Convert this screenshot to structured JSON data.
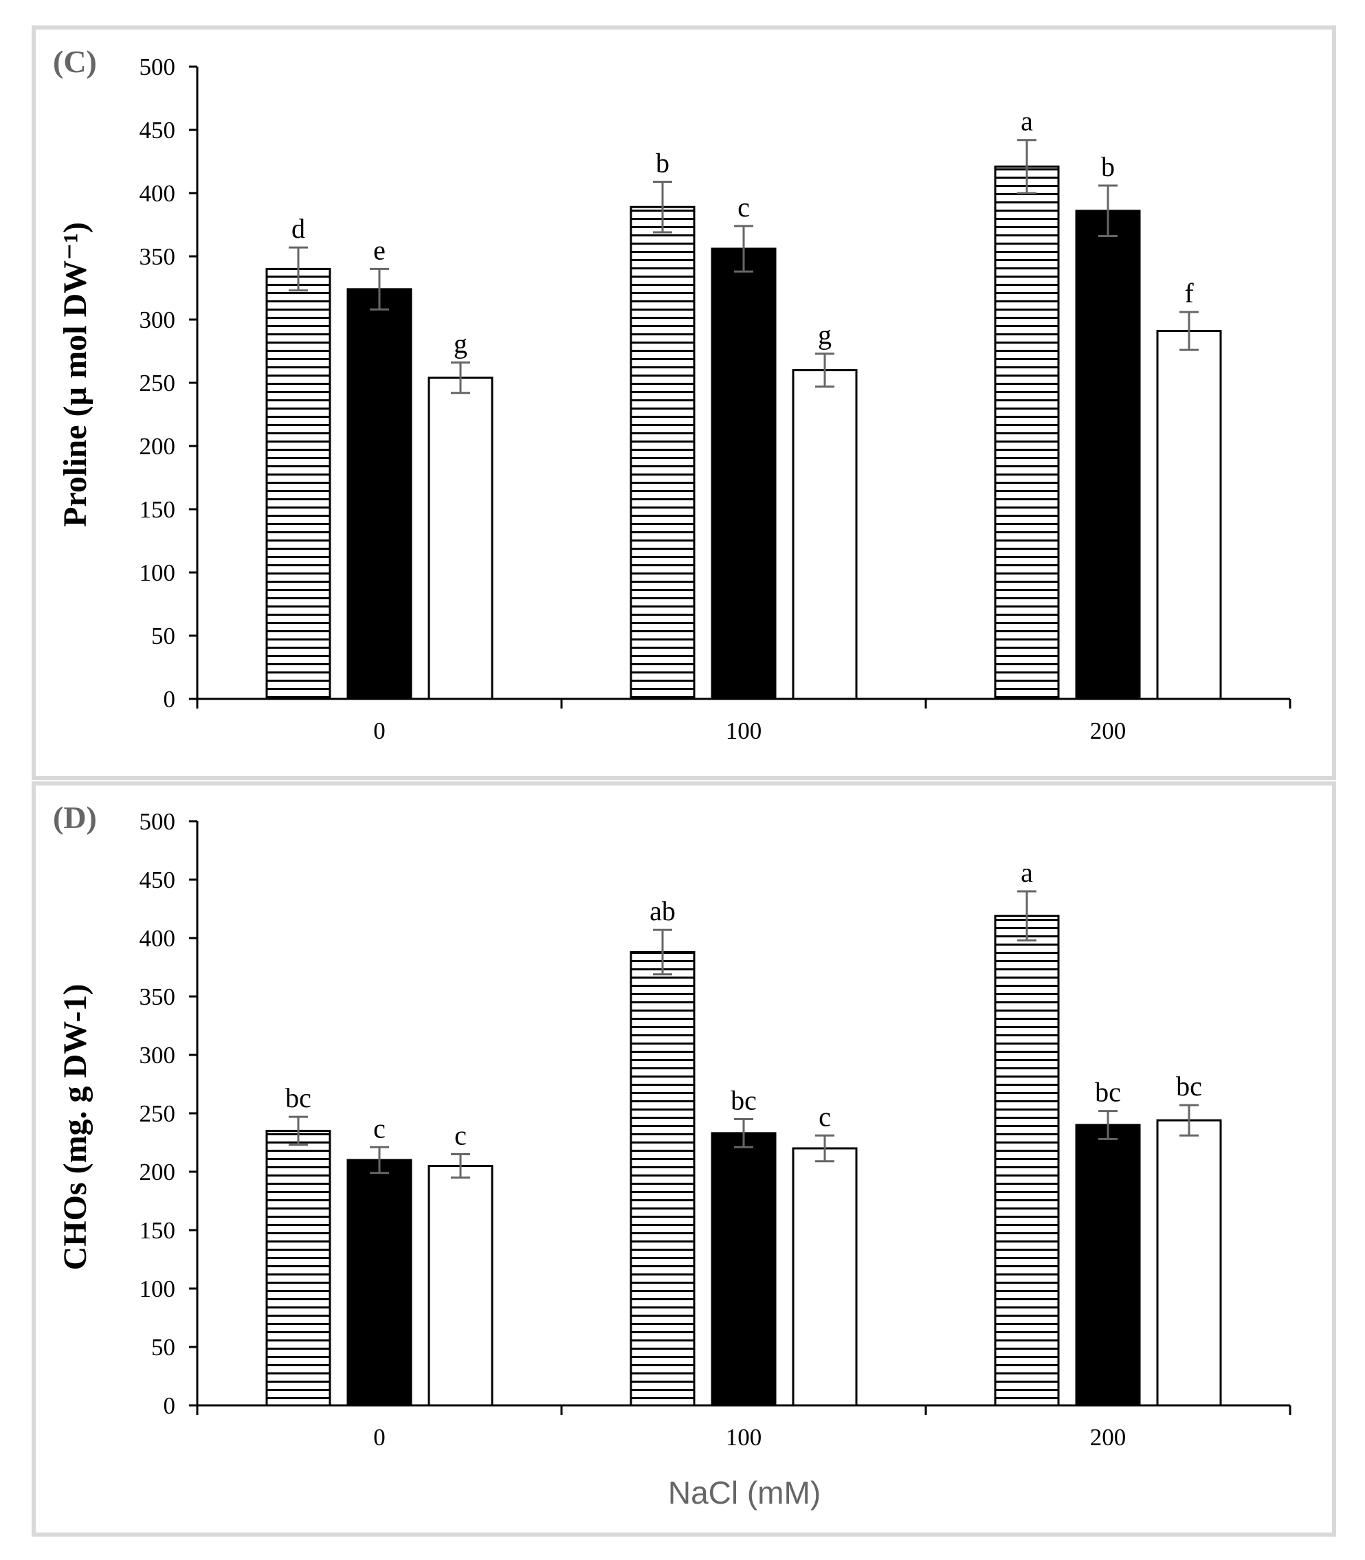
{
  "chart_data": [
    {
      "type": "bar",
      "panel": "(C)",
      "title": "",
      "xlabel": "",
      "ylabel": "Proline (µ mol DW⁻¹)",
      "categories": [
        "0",
        "100",
        "200"
      ],
      "ylim": [
        0,
        500
      ],
      "yticks": [
        0,
        50,
        100,
        150,
        200,
        250,
        300,
        350,
        400,
        450,
        500
      ],
      "grid": false,
      "series": [
        {
          "name": "series 1 (horizontal stripes)",
          "pattern": "stripes",
          "values": [
            340,
            389,
            421
          ],
          "errors": [
            17,
            20,
            21
          ],
          "labels": [
            "d",
            "b",
            "a"
          ]
        },
        {
          "name": "series 2 (solid black)",
          "pattern": "black",
          "values": [
            324,
            356,
            386
          ],
          "errors": [
            16,
            18,
            20
          ],
          "labels": [
            "e",
            "c",
            "b"
          ]
        },
        {
          "name": "series 3 (white)",
          "pattern": "white",
          "values": [
            254,
            260,
            291
          ],
          "errors": [
            12,
            13,
            15
          ],
          "labels": [
            "g",
            "g",
            "f"
          ]
        }
      ]
    },
    {
      "type": "bar",
      "panel": "(D)",
      "title": "",
      "xlabel": "NaCl (mM)",
      "ylabel": "CHOs (mg. g DW-1)",
      "categories": [
        "0",
        "100",
        "200"
      ],
      "ylim": [
        0,
        500
      ],
      "yticks": [
        0,
        50,
        100,
        150,
        200,
        250,
        300,
        350,
        400,
        450,
        500
      ],
      "grid": false,
      "series": [
        {
          "name": "series 1 (horizontal stripes)",
          "pattern": "stripes",
          "values": [
            235,
            388,
            419
          ],
          "errors": [
            12,
            19,
            21
          ],
          "labels": [
            "bc",
            "ab",
            "a"
          ]
        },
        {
          "name": "series 2 (solid black)",
          "pattern": "black",
          "values": [
            210,
            233,
            240
          ],
          "errors": [
            11,
            12,
            12
          ],
          "labels": [
            "c",
            "bc",
            "bc"
          ]
        },
        {
          "name": "series 3 (white)",
          "pattern": "white",
          "values": [
            205,
            220,
            244
          ],
          "errors": [
            10,
            11,
            13
          ],
          "labels": [
            "c",
            "c",
            "bc"
          ]
        }
      ]
    }
  ],
  "colors": {
    "frame": "#d9d9d9",
    "axis": "#000000",
    "error_bar": "#666666",
    "panel_tag": "#666666",
    "xlabel": "#666666"
  }
}
